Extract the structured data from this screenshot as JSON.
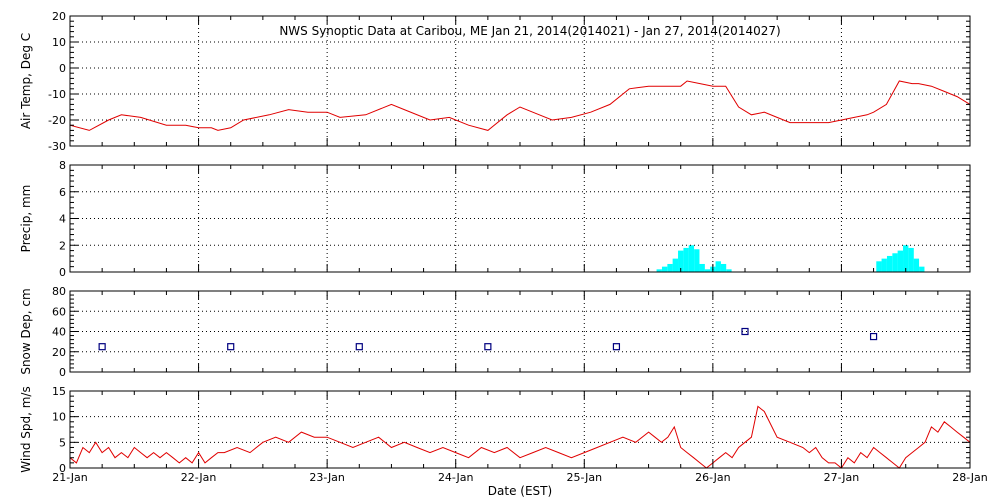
{
  "chart_data": {
    "title": "NWS Synoptic Data at Caribou, ME   Jan 21, 2014(2014021) - Jan 27, 2014(2014027)",
    "xlabel": "Date (EST)",
    "x_ticks": [
      "21-Jan",
      "22-Jan",
      "23-Jan",
      "24-Jan",
      "25-Jan",
      "26-Jan",
      "27-Jan",
      "28-Jan"
    ],
    "x_range_days": [
      0,
      7
    ],
    "grid": true,
    "colors": {
      "line": "#e00000",
      "precip": "#00ffff",
      "snow_marker": "#000080",
      "grid": "#000000"
    },
    "panels": [
      {
        "name": "air_temp",
        "type": "line",
        "ylabel": "Air Temp, Deg C",
        "ylim": [
          -30,
          20
        ],
        "yticks": [
          "20",
          "10",
          "0",
          "-10",
          "-20",
          "-30"
        ],
        "x_days": [
          0,
          0.15,
          0.3,
          0.4,
          0.55,
          0.75,
          0.9,
          1.0,
          1.1,
          1.15,
          1.25,
          1.35,
          1.55,
          1.7,
          1.85,
          2.0,
          2.1,
          2.3,
          2.5,
          2.6,
          2.8,
          2.95,
          3.1,
          3.25,
          3.4,
          3.5,
          3.65,
          3.75,
          3.9,
          4.05,
          4.2,
          4.35,
          4.5,
          4.62,
          4.75,
          4.8,
          4.9,
          5.0,
          5.1,
          5.2,
          5.3,
          5.4,
          5.5,
          5.6,
          5.75,
          5.9,
          6.0,
          6.1,
          6.2,
          6.25,
          6.35,
          6.45,
          6.55,
          6.6,
          6.7,
          6.8,
          6.9,
          7.0
        ],
        "values": [
          -22,
          -24,
          -20,
          -18,
          -19,
          -22,
          -22,
          -23,
          -23,
          -24,
          -23,
          -20,
          -18,
          -16,
          -17,
          -17,
          -19,
          -18,
          -14,
          -16,
          -20,
          -19,
          -22,
          -24,
          -18,
          -15,
          -18,
          -20,
          -19,
          -17,
          -14,
          -8,
          -7,
          -7,
          -7,
          -5,
          -6,
          -7,
          -7,
          -15,
          -18,
          -17,
          -19,
          -21,
          -21,
          -21,
          -20,
          -19,
          -18,
          -17,
          -14,
          -5,
          -6,
          -6,
          -7,
          -9,
          -11,
          -14
        ]
      },
      {
        "name": "precip",
        "type": "bar",
        "ylabel": "Precip, mm",
        "ylim": [
          0,
          8
        ],
        "yticks": [
          "8",
          "6",
          "4",
          "2",
          "0"
        ],
        "bar_width_days": 0.0417,
        "x_days": [
          4.583,
          4.625,
          4.667,
          4.708,
          4.75,
          4.792,
          4.833,
          4.875,
          4.917,
          4.958,
          5.0,
          5.042,
          5.083,
          5.125,
          6.292,
          6.333,
          6.375,
          6.417,
          6.458,
          6.5,
          6.542,
          6.583,
          6.625
        ],
        "values": [
          0.2,
          0.4,
          0.6,
          1.0,
          1.6,
          1.8,
          2.0,
          1.7,
          0.6,
          0.2,
          0.4,
          0.8,
          0.6,
          0.2,
          0.8,
          1.0,
          1.2,
          1.4,
          1.6,
          2.0,
          1.8,
          1.0,
          0.4
        ]
      },
      {
        "name": "snow_depth",
        "type": "scatter",
        "ylabel": "Snow Dep, cm",
        "ylim": [
          0,
          80
        ],
        "yticks": [
          "80",
          "60",
          "40",
          "20",
          "0"
        ],
        "x_days": [
          0.25,
          1.25,
          2.25,
          3.25,
          4.25,
          5.25,
          6.25
        ],
        "values": [
          25,
          25,
          25,
          25,
          25,
          40,
          35
        ]
      },
      {
        "name": "wind_speed",
        "type": "line",
        "ylabel": "Wind Spd, m/s",
        "ylim": [
          0,
          15
        ],
        "yticks": [
          "15",
          "10",
          "5",
          "0"
        ],
        "x_days": [
          0,
          0.05,
          0.1,
          0.15,
          0.2,
          0.25,
          0.3,
          0.35,
          0.4,
          0.45,
          0.5,
          0.55,
          0.6,
          0.65,
          0.7,
          0.75,
          0.8,
          0.85,
          0.9,
          0.95,
          1.0,
          1.05,
          1.1,
          1.15,
          1.2,
          1.3,
          1.4,
          1.5,
          1.6,
          1.7,
          1.8,
          1.9,
          2.0,
          2.1,
          2.2,
          2.3,
          2.4,
          2.5,
          2.6,
          2.7,
          2.8,
          2.9,
          3.0,
          3.1,
          3.2,
          3.3,
          3.4,
          3.5,
          3.6,
          3.7,
          3.8,
          3.9,
          4.0,
          4.1,
          4.2,
          4.3,
          4.4,
          4.5,
          4.55,
          4.6,
          4.65,
          4.7,
          4.75,
          4.8,
          4.85,
          4.9,
          4.95,
          5.0,
          5.05,
          5.1,
          5.15,
          5.2,
          5.25,
          5.3,
          5.35,
          5.4,
          5.5,
          5.6,
          5.7,
          5.75,
          5.8,
          5.85,
          5.9,
          5.95,
          6.0,
          6.05,
          6.1,
          6.15,
          6.2,
          6.25,
          6.3,
          6.35,
          6.4,
          6.45,
          6.5,
          6.55,
          6.6,
          6.65,
          6.7,
          6.75,
          6.8,
          6.85,
          6.9,
          6.95,
          7.0
        ],
        "values": [
          2,
          1,
          4,
          3,
          5,
          3,
          4,
          2,
          3,
          2,
          4,
          3,
          2,
          3,
          2,
          3,
          2,
          1,
          2,
          1,
          3,
          1,
          2,
          3,
          3,
          4,
          3,
          5,
          6,
          5,
          7,
          6,
          6,
          5,
          4,
          5,
          6,
          4,
          5,
          4,
          3,
          4,
          3,
          2,
          4,
          3,
          4,
          2,
          3,
          4,
          3,
          2,
          3,
          4,
          5,
          6,
          5,
          7,
          6,
          5,
          6,
          8,
          4,
          3,
          2,
          1,
          0,
          1,
          2,
          3,
          2,
          4,
          5,
          6,
          12,
          11,
          6,
          5,
          4,
          3,
          4,
          2,
          1,
          1,
          0,
          2,
          1,
          3,
          2,
          4,
          3,
          2,
          1,
          0,
          2,
          3,
          4,
          5,
          8,
          7,
          9,
          8,
          7,
          6,
          5
        ]
      }
    ]
  }
}
